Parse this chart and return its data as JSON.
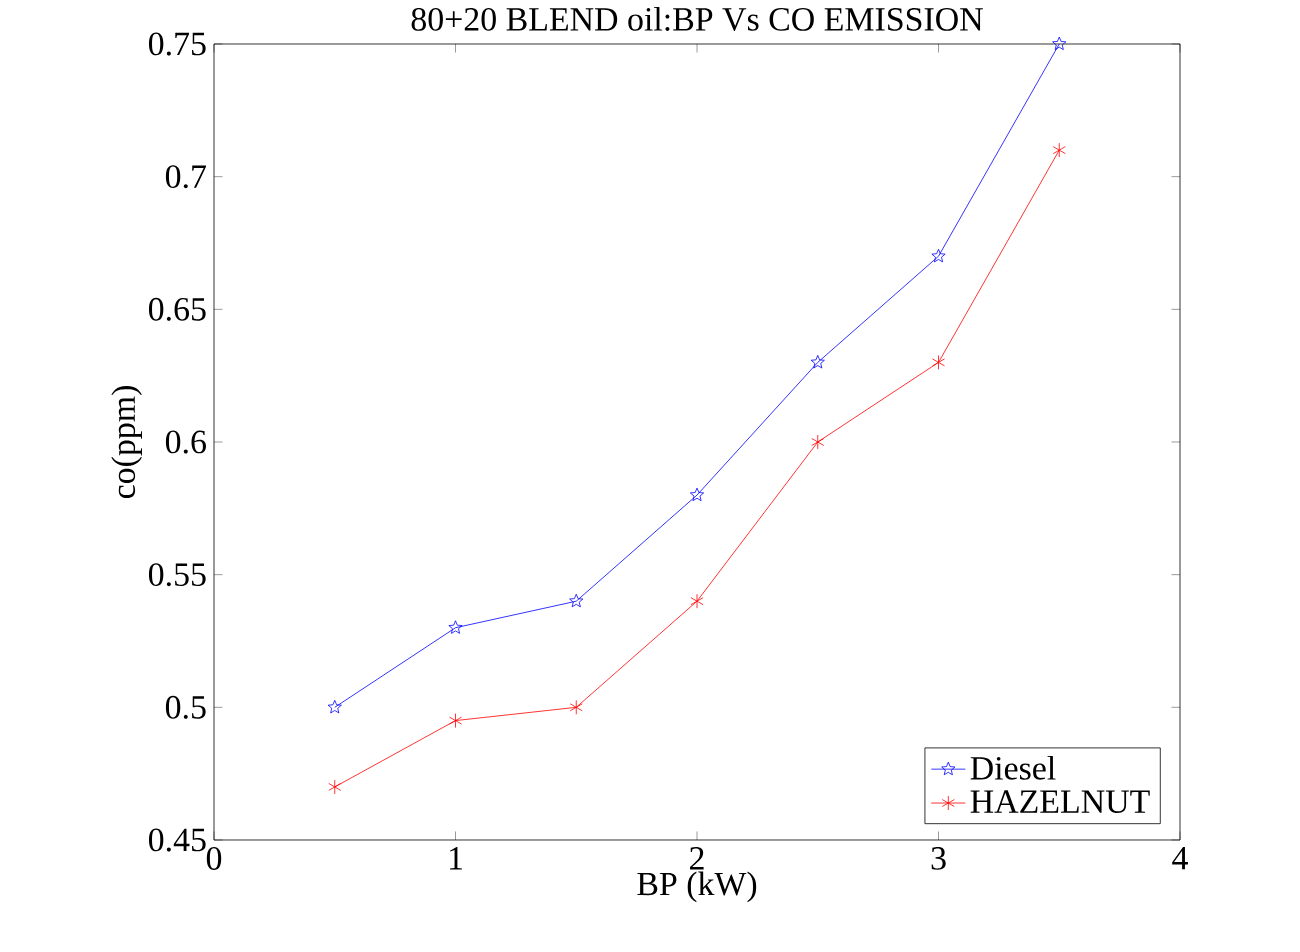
{
  "chart_data": {
    "type": "line",
    "title": "80+20 BLEND oil:BP Vs CO EMISSION",
    "xlabel": "BP (kW)",
    "ylabel": "co(ppm)",
    "x": [
      0.5,
      1,
      1.5,
      2,
      2.5,
      3,
      3.5
    ],
    "series": [
      {
        "name": "Diesel",
        "color": "#0000ff",
        "marker": "star",
        "values": [
          0.5,
          0.53,
          0.54,
          0.58,
          0.63,
          0.67,
          0.75
        ]
      },
      {
        "name": "HAZELNUT",
        "color": "#ff0000",
        "marker": "cross",
        "values": [
          0.47,
          0.495,
          0.5,
          0.54,
          0.6,
          0.63,
          0.71
        ]
      }
    ],
    "xlim": [
      0,
      4
    ],
    "xticks": [
      0,
      1,
      2,
      3,
      4
    ],
    "ylim": [
      0.45,
      0.75
    ],
    "yticks": [
      0.45,
      0.5,
      0.55,
      0.6,
      0.65,
      0.7,
      0.75
    ],
    "grid": false,
    "legend": "bottom right",
    "line_style": "solid"
  }
}
